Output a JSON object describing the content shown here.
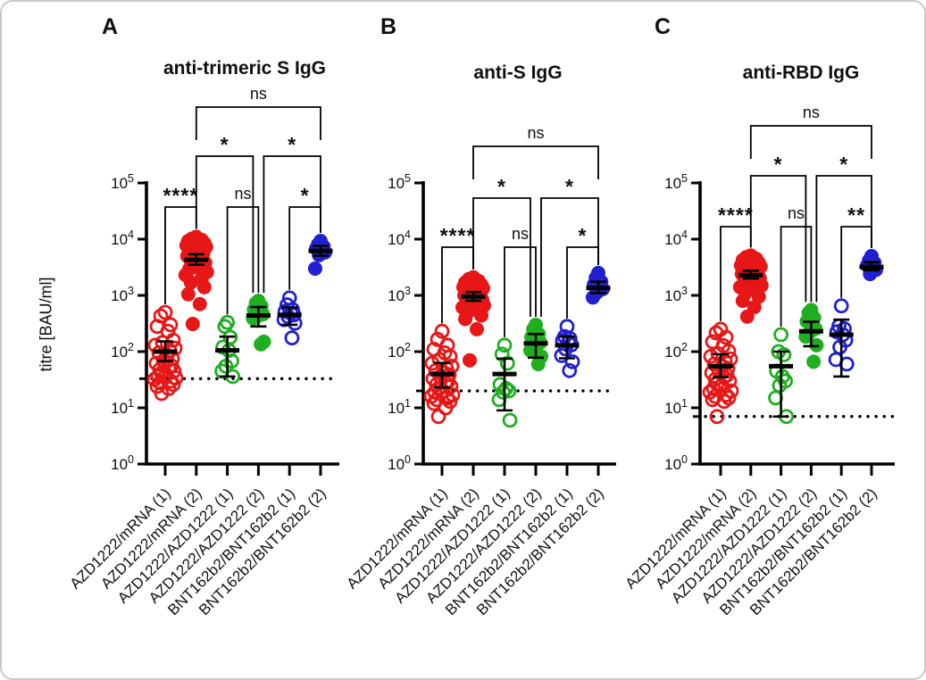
{
  "figure": {
    "letters": [
      "A",
      "B",
      "C"
    ],
    "border_color": "#c9c9c9",
    "background": "#ffffff",
    "axis_color": "#000000"
  },
  "chart_data": [
    {
      "type": "scatter",
      "title": "anti-trimeric S IgG",
      "ylabel": "titre [BAU/ml]",
      "yscale": "log",
      "ylim": [
        1,
        100000
      ],
      "ytick_exponents": [
        0,
        1,
        2,
        3,
        4,
        5
      ],
      "cutoff_line": 33,
      "categories": [
        "AZD1222/mRNA (1)",
        "AZD1222/mRNA (2)",
        "AZD1222/AZD1222 (1)",
        "AZD1222/AZD1222 (2)",
        "BNT162b2/BNT162b2 (1)",
        "BNT162b2/BNT162b2 (2)"
      ],
      "groups": [
        {
          "label": "AZD1222/mRNA (1)",
          "color": "#e81717",
          "marker": "open",
          "center": 100,
          "err_lo": 68,
          "err_hi": 152,
          "values": [
            500,
            430,
            300,
            280,
            230,
            160,
            145,
            130,
            115,
            105,
            95,
            85,
            75,
            68,
            62,
            56,
            52,
            48,
            45,
            42,
            39,
            36,
            34,
            32,
            30,
            28,
            26,
            24,
            22,
            18
          ]
        },
        {
          "label": "AZD1222/mRNA (2)",
          "color": "#e81717",
          "marker": "filled",
          "center": 4300,
          "err_lo": 3500,
          "err_hi": 5400,
          "values": [
            11000,
            10200,
            9700,
            9300,
            8900,
            8500,
            8100,
            7700,
            7300,
            6900,
            6500,
            6100,
            5700,
            5300,
            5000,
            4700,
            4400,
            4100,
            3800,
            3500,
            3200,
            2900,
            2600,
            2300,
            2000,
            1700,
            1400,
            1050,
            700,
            310
          ]
        },
        {
          "label": "AZD1222/AZD1222 (1)",
          "color": "#1fae1f",
          "marker": "open",
          "center": 105,
          "err_lo": 36,
          "err_hi": 185,
          "values": [
            330,
            280,
            180,
            120,
            105,
            68,
            55,
            45,
            36
          ]
        },
        {
          "label": "AZD1222/AZD1222 (2)",
          "color": "#1fae1f",
          "marker": "filled",
          "center": 440,
          "err_lo": 280,
          "err_hi": 620,
          "values": [
            800,
            730,
            640,
            560,
            500,
            460,
            420,
            390,
            150,
            135
          ]
        },
        {
          "label": "BNT162b2/BNT162b2 (1)",
          "color": "#2020d0",
          "marker": "open",
          "center": 450,
          "err_lo": 300,
          "err_hi": 610,
          "values": [
            900,
            680,
            560,
            520,
            480,
            450,
            420,
            370,
            320,
            175
          ]
        },
        {
          "label": "BNT162b2/BNT162b2 (2)",
          "color": "#2020d0",
          "marker": "filled",
          "center": 6200,
          "err_lo": 5100,
          "err_hi": 7600,
          "values": [
            9300,
            8100,
            7400,
            6800,
            6300,
            5800,
            5200,
            3000
          ]
        }
      ],
      "significance": [
        {
          "from": 0,
          "to": 1,
          "label": "****",
          "level": 1
        },
        {
          "from": 2,
          "to": 3,
          "label": "ns",
          "level": 1
        },
        {
          "from": 4,
          "to": 5,
          "label": "*",
          "level": 1
        },
        {
          "from": 1,
          "to": 3,
          "label": "*",
          "level": 2
        },
        {
          "from": 3,
          "to": 5,
          "label": "*",
          "level": 2
        },
        {
          "from": 1,
          "to": 5,
          "label": "ns",
          "level": 3
        }
      ]
    },
    {
      "type": "scatter",
      "title": "anti-S IgG",
      "ylabel": "titre [BAU/ml]",
      "yscale": "log",
      "ylim": [
        1,
        100000
      ],
      "ytick_exponents": [
        0,
        1,
        2,
        3,
        4,
        5
      ],
      "cutoff_line": 20,
      "categories": [
        "AZD1222/mRNA (1)",
        "AZD1222/mRNA (2)",
        "AZD1222/AZD1222 (1)",
        "AZD1222/AZD1222 (2)",
        "BNT162b2/BNT162b2 (1)",
        "BNT162b2/BNT162b2 (2)"
      ],
      "groups": [
        {
          "label": "AZD1222/mRNA (1)",
          "color": "#e81717",
          "marker": "open",
          "center": 40,
          "err_lo": 23,
          "err_hi": 63,
          "values": [
            230,
            165,
            130,
            110,
            95,
            82,
            72,
            62,
            55,
            50,
            46,
            42,
            39,
            36,
            33,
            30,
            28,
            26,
            24,
            22,
            20,
            19,
            17,
            16,
            15,
            14,
            13,
            12,
            10,
            7
          ]
        },
        {
          "label": "AZD1222/mRNA (2)",
          "color": "#e81717",
          "marker": "filled",
          "center": 950,
          "err_lo": 800,
          "err_hi": 1150,
          "values": [
            2100,
            1950,
            1800,
            1700,
            1620,
            1540,
            1470,
            1400,
            1340,
            1280,
            1220,
            1160,
            1100,
            1050,
            1000,
            960,
            920,
            880,
            840,
            800,
            760,
            710,
            660,
            610,
            560,
            500,
            440,
            380,
            250,
            70
          ]
        },
        {
          "label": "AZD1222/AZD1222 (1)",
          "color": "#1fae1f",
          "marker": "open",
          "center": 40,
          "err_lo": 9,
          "err_hi": 75,
          "values": [
            130,
            90,
            62,
            26,
            22,
            20,
            19,
            14,
            6
          ]
        },
        {
          "label": "AZD1222/AZD1222 (2)",
          "color": "#1fae1f",
          "marker": "filled",
          "center": 140,
          "err_lo": 78,
          "err_hi": 205,
          "values": [
            300,
            250,
            205,
            180,
            160,
            145,
            125,
            105,
            82,
            60
          ]
        },
        {
          "label": "BNT162b2/BNT162b2 (1)",
          "color": "#2020d0",
          "marker": "open",
          "center": 130,
          "err_lo": 76,
          "err_hi": 185,
          "values": [
            280,
            185,
            170,
            158,
            148,
            132,
            112,
            85,
            66,
            46
          ]
        },
        {
          "label": "BNT162b2/BNT162b2 (2)",
          "color": "#2020d0",
          "marker": "filled",
          "center": 1350,
          "err_lo": 1100,
          "err_hi": 1750,
          "values": [
            2500,
            2050,
            1750,
            1550,
            1400,
            1300,
            1120,
            920
          ]
        }
      ],
      "significance": [
        {
          "from": 0,
          "to": 1,
          "label": "****",
          "level": 1
        },
        {
          "from": 2,
          "to": 3,
          "label": "ns",
          "level": 1
        },
        {
          "from": 4,
          "to": 5,
          "label": "*",
          "level": 1
        },
        {
          "from": 1,
          "to": 3,
          "label": "*",
          "level": 2
        },
        {
          "from": 3,
          "to": 5,
          "label": "*",
          "level": 2
        },
        {
          "from": 1,
          "to": 5,
          "label": "ns",
          "level": 3
        }
      ]
    },
    {
      "type": "scatter",
      "title": "anti-RBD IgG",
      "ylabel": "titre [BAU/ml]",
      "yscale": "log",
      "ylim": [
        1,
        100000
      ],
      "ytick_exponents": [
        0,
        1,
        2,
        3,
        4,
        5
      ],
      "cutoff_line": 7,
      "categories": [
        "AZD1222/mRNA (1)",
        "AZD1222/mRNA (2)",
        "AZD1222/AZD1222 (1)",
        "AZD1222/AZD1222 (2)",
        "BNT162b2/BNT162b2 (1)",
        "BNT162b2/BNT162b2 (2)"
      ],
      "groups": [
        {
          "label": "AZD1222/mRNA (1)",
          "color": "#e81717",
          "marker": "open",
          "center": 55,
          "err_lo": 35,
          "err_hi": 90,
          "values": [
            250,
            215,
            180,
            150,
            128,
            102,
            92,
            82,
            74,
            68,
            60,
            55,
            50,
            46,
            42,
            38,
            35,
            32,
            30,
            27,
            25,
            22,
            20,
            19,
            17,
            16,
            15,
            14,
            13,
            7
          ]
        },
        {
          "label": "AZD1222/mRNA (2)",
          "color": "#e81717",
          "marker": "filled",
          "center": 2300,
          "err_lo": 2000,
          "err_hi": 2750,
          "values": [
            5100,
            4800,
            4500,
            4250,
            4000,
            3800,
            3600,
            3400,
            3250,
            3100,
            2950,
            2800,
            2650,
            2500,
            2400,
            2300,
            2200,
            2100,
            2000,
            1900,
            1800,
            1650,
            1500,
            1400,
            1250,
            1100,
            950,
            800,
            620,
            420
          ]
        },
        {
          "label": "AZD1222/AZD1222 (1)",
          "color": "#1fae1f",
          "marker": "open",
          "center": 55,
          "err_lo": 7,
          "err_hi": 100,
          "values": [
            200,
            100,
            88,
            45,
            36,
            30,
            25,
            15,
            7
          ]
        },
        {
          "label": "AZD1222/AZD1222 (2)",
          "color": "#1fae1f",
          "marker": "filled",
          "center": 230,
          "err_lo": 125,
          "err_hi": 340,
          "values": [
            550,
            490,
            400,
            345,
            300,
            255,
            220,
            185,
            130,
            66
          ]
        },
        {
          "label": "BNT162b2/BNT162b2 (1)",
          "color": "#2020d0",
          "marker": "open",
          "center": 200,
          "err_lo": 36,
          "err_hi": 370,
          "values": [
            650,
            285,
            255,
            225,
            200,
            160,
            120,
            72,
            60
          ]
        },
        {
          "label": "BNT162b2/BNT162b2 (2)",
          "color": "#2020d0",
          "marker": "filled",
          "center": 3200,
          "err_lo": 2800,
          "err_hi": 3900,
          "values": [
            5000,
            4200,
            3800,
            3400,
            3150,
            2850,
            2400
          ]
        }
      ],
      "significance": [
        {
          "from": 0,
          "to": 1,
          "label": "****",
          "level": 1
        },
        {
          "from": 2,
          "to": 3,
          "label": "ns",
          "level": 1
        },
        {
          "from": 4,
          "to": 5,
          "label": "**",
          "level": 1
        },
        {
          "from": 1,
          "to": 3,
          "label": "*",
          "level": 2
        },
        {
          "from": 3,
          "to": 5,
          "label": "*",
          "level": 2
        },
        {
          "from": 1,
          "to": 5,
          "label": "ns",
          "level": 3
        }
      ]
    }
  ]
}
